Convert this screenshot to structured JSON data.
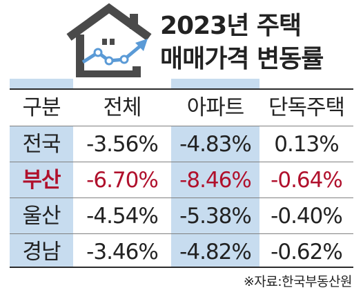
{
  "title": {
    "line1": "2023년 주택",
    "line2": "매매가격 변동률"
  },
  "icon": "house-with-rising-chart-icon",
  "colors": {
    "header_shade": "#c7dcef",
    "highlight_text": "#b0102c",
    "icon_house": "#4a4a4a",
    "icon_chart": "#5a9ad6"
  },
  "table": {
    "headers": [
      "구분",
      "전체",
      "아파트",
      "단독주택"
    ],
    "rows": [
      {
        "region": "전국",
        "total": "-3.56%",
        "apartment": "-4.83%",
        "detached": "0.13%",
        "highlight": false
      },
      {
        "region": "부산",
        "total": "-6.70%",
        "apartment": "-8.46%",
        "detached": "-0.64%",
        "highlight": true
      },
      {
        "region": "울산",
        "total": "-4.54%",
        "apartment": "-5.38%",
        "detached": "-0.40%",
        "highlight": false
      },
      {
        "region": "경남",
        "total": "-3.46%",
        "apartment": "-4.82%",
        "detached": "-0.62%",
        "highlight": false
      }
    ]
  },
  "source": "※자료:한국부동산원"
}
